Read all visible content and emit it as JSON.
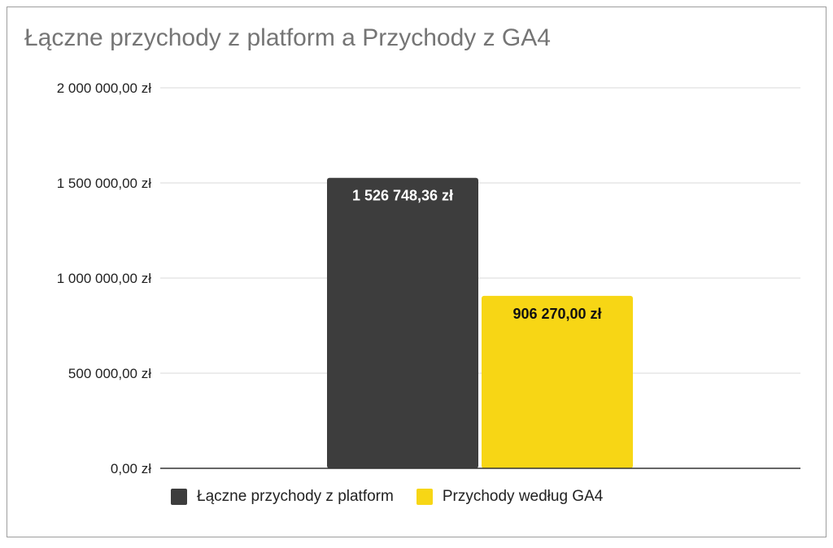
{
  "chart_data": {
    "type": "bar",
    "title": "Łączne przychody z platform a Przychody z GA4",
    "categories": [
      "Łączne przychody z platform",
      "Przychody według GA4"
    ],
    "values": [
      1526748.36,
      906270.0
    ],
    "value_labels": [
      "1 526 748,36 zł",
      "906 270,00 zł"
    ],
    "series": [
      {
        "name": "Łączne przychody z platform",
        "value": 1526748.36,
        "color": "#3d3d3d",
        "label_color": "#ffffff"
      },
      {
        "name": "Przychody według GA4",
        "value": 906270.0,
        "color": "#f7d615",
        "label_color": "#111111"
      }
    ],
    "ylim": [
      0,
      2000000
    ],
    "y_ticks": [
      0,
      500000,
      1000000,
      1500000,
      2000000
    ],
    "y_tick_labels": [
      "0,00 zł",
      "500 000,00 zł",
      "1 000 000,00 zł",
      "1 500 000,00 zł",
      "2 000 000,00 zł"
    ],
    "xlabel": "",
    "ylabel": "",
    "grid": true,
    "legend_position": "bottom"
  }
}
